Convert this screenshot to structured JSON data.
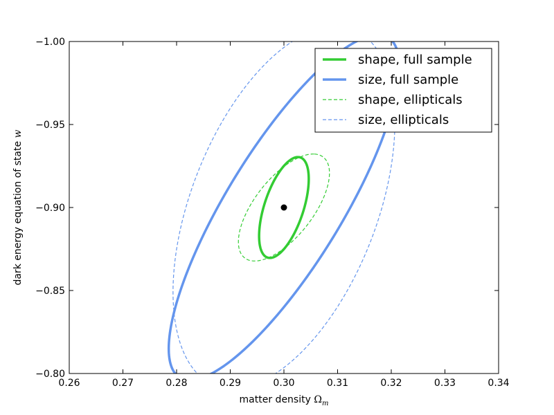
{
  "chart_data": {
    "type": "line",
    "title": "",
    "xlabel": "matter density",
    "xlabel_symbol": "Ω",
    "xlabel_subscript": "m",
    "ylabel": "dark energy equation of state",
    "ylabel_symbol": "w",
    "xlim": [
      0.26,
      0.34
    ],
    "ylim": [
      -0.8,
      -1.0
    ],
    "xticks": [
      0.26,
      0.27,
      0.28,
      0.29,
      0.3,
      0.31,
      0.32,
      0.33,
      0.34
    ],
    "xtick_labels": [
      "0.26",
      "0.27",
      "0.28",
      "0.29",
      "0.30",
      "0.31",
      "0.32",
      "0.33",
      "0.34"
    ],
    "yticks": [
      -1.0,
      -0.95,
      -0.9,
      -0.85,
      -0.8
    ],
    "ytick_labels": [
      "−1.00",
      "−0.95",
      "−0.90",
      "−0.85",
      "−0.80"
    ],
    "grid": false,
    "legend_position": "top-right",
    "fiducial_point": {
      "x": 0.3,
      "y": -0.9,
      "color": "#000000"
    },
    "series": [
      {
        "name": "shape, full sample",
        "style": "solid",
        "width": 3.5,
        "color": "#33cc33",
        "ellipse": {
          "cx": 0.3,
          "cy": -0.9,
          "a": 0.0305,
          "b": 0.0038,
          "tilt_deg": -85.0
        }
      },
      {
        "name": "size, full sample",
        "style": "solid",
        "width": 3.5,
        "color": "#6495ed",
        "ellipse": {
          "cx": 0.3,
          "cy": -0.9,
          "a": 0.1055,
          "b": 0.0122,
          "tilt_deg": -80.3
        }
      },
      {
        "name": "shape, ellipticals",
        "style": "dashed",
        "width": 1.2,
        "color": "#33cc33",
        "ellipse": {
          "cx": 0.3,
          "cy": -0.9,
          "a": 0.0327,
          "b": 0.0064,
          "tilt_deg": -80.0
        }
      },
      {
        "name": "size, ellipticals",
        "style": "dashed",
        "width": 1.2,
        "color": "#6495ed",
        "ellipse": {
          "cx": 0.3,
          "cy": -0.9,
          "a": 0.1095,
          "b": 0.0182,
          "tilt_deg": -84.8
        }
      }
    ]
  }
}
